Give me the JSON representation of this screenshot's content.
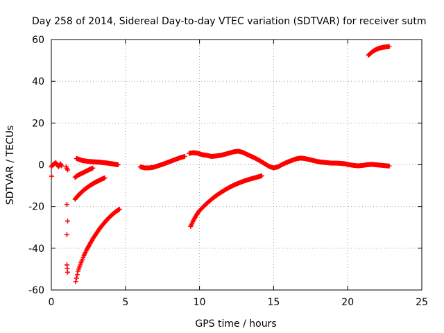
{
  "chart_data": {
    "type": "scatter",
    "title": "Day 258 of 2014, Sidereal Day-to-day VTEC variation (SDTVAR) for receiver sutm",
    "xlabel": "GPS time / hours",
    "ylabel": "SDTVAR / TECUs",
    "xlim": [
      0,
      25
    ],
    "ylim": [
      -60,
      60
    ],
    "xticks": [
      0,
      5,
      10,
      15,
      20,
      25
    ],
    "xtick_labels": [
      "0",
      "5",
      "10",
      "15",
      "20",
      "25"
    ],
    "yticks": [
      -60,
      -40,
      -20,
      0,
      20,
      40,
      60
    ],
    "ytick_labels": [
      "-60",
      "-40",
      "-20",
      "0",
      "20",
      "40",
      "60"
    ],
    "grid": true,
    "marker": "+",
    "color": "#ff0000",
    "series": [
      {
        "name": "cluster-start-near-zero",
        "x": [
          0.0,
          0.1,
          0.2,
          0.3,
          0.4,
          0.5,
          0.6,
          0.7
        ],
        "y": [
          -1,
          0,
          0.5,
          1,
          0,
          -1,
          0.5,
          -0.5
        ]
      },
      {
        "name": "isolated-start",
        "x": [
          0.02
        ],
        "y": [
          -5.5
        ]
      },
      {
        "name": "isolated-mid",
        "x": [
          1.05,
          1.05,
          1.1,
          1.1,
          1.0
        ],
        "y": [
          -19,
          -48,
          -51.5,
          -2.5,
          -1
        ]
      },
      {
        "name": "zero-band-early",
        "x": [
          1.7,
          1.9,
          2.1,
          2.3,
          2.5,
          2.7,
          2.9,
          3.1,
          3.3,
          3.5,
          3.7,
          3.9,
          4.1,
          4.3,
          4.5
        ],
        "y": [
          3,
          2.5,
          2,
          1.8,
          1.6,
          1.5,
          1.4,
          1.3,
          1.2,
          1.0,
          0.9,
          0.7,
          0.5,
          0.2,
          0.0
        ]
      },
      {
        "name": "arc-minus-5",
        "x": [
          1.6,
          1.8,
          2.0,
          2.2,
          2.4,
          2.6,
          2.8
        ],
        "y": [
          -6,
          -5,
          -4.3,
          -3.6,
          -2.9,
          -2.2,
          -1.6
        ]
      },
      {
        "name": "arc-minus-16",
        "x": [
          1.6,
          1.8,
          2.0,
          2.2,
          2.4,
          2.6,
          2.8,
          3.0,
          3.2,
          3.4,
          3.6
        ],
        "y": [
          -16.5,
          -14.8,
          -13.4,
          -12.1,
          -11.0,
          -10.0,
          -9.1,
          -8.3,
          -7.6,
          -6.9,
          -6.3
        ]
      },
      {
        "name": "arc-minus-56",
        "x": [
          1.65,
          1.8,
          2.0,
          2.2,
          2.4,
          2.6,
          2.8,
          3.0,
          3.2,
          3.4,
          3.6,
          3.8,
          4.0,
          4.2,
          4.4,
          4.6
        ],
        "y": [
          -56,
          -51,
          -47,
          -43.5,
          -40.5,
          -38,
          -35.5,
          -33.3,
          -31.2,
          -29.3,
          -27.6,
          -26,
          -24.6,
          -23.3,
          -22.2,
          -21.3
        ]
      },
      {
        "name": "zero-band-6to9",
        "x": [
          6.0,
          6.3,
          6.6,
          6.9,
          7.2,
          7.5,
          7.8,
          8.1,
          8.4,
          8.7,
          9.0
        ],
        "y": [
          -1,
          -1.5,
          -1.5,
          -1.2,
          -0.5,
          0.2,
          1,
          1.8,
          2.6,
          3.4,
          4.0
        ]
      },
      {
        "name": "arc-minus-29",
        "x": [
          9.4,
          9.6,
          9.8,
          10.0,
          10.3,
          10.6,
          10.9,
          11.2,
          11.5,
          11.8,
          12.1,
          12.4,
          12.7,
          13.0,
          13.3,
          13.6,
          13.9,
          14.2
        ],
        "y": [
          -29.5,
          -26.5,
          -24,
          -22,
          -19.8,
          -17.8,
          -16,
          -14.4,
          -13,
          -11.7,
          -10.5,
          -9.5,
          -8.6,
          -7.8,
          -7.1,
          -6.5,
          -5.9,
          -5.3
        ]
      },
      {
        "name": "main-band",
        "x": [
          9.3,
          9.6,
          9.9,
          10.2,
          10.5,
          10.8,
          11.1,
          11.4,
          11.7,
          12.0,
          12.3,
          12.6,
          12.9,
          13.2,
          13.5,
          13.8,
          14.1,
          14.4,
          14.7,
          15.0,
          15.3,
          15.6,
          15.9,
          16.2,
          16.5,
          16.8,
          17.1,
          17.4,
          17.7,
          18.0,
          18.3,
          18.6,
          18.9,
          19.2,
          19.5,
          19.8,
          20.1,
          20.4,
          20.7,
          21.0,
          21.3,
          21.6,
          21.9,
          22.2,
          22.5,
          22.8
        ],
        "y": [
          5.5,
          5.8,
          5.5,
          4.8,
          4.5,
          4.0,
          4.2,
          4.5,
          5.0,
          5.6,
          6.2,
          6.5,
          6.0,
          5.0,
          4.0,
          3.0,
          1.8,
          0.5,
          -0.8,
          -1.5,
          -1.0,
          0.2,
          1.2,
          2.0,
          2.8,
          3.2,
          3.0,
          2.5,
          2.0,
          1.5,
          1.2,
          1.0,
          0.8,
          0.8,
          0.7,
          0.5,
          0.0,
          -0.3,
          -0.5,
          -0.3,
          0.0,
          0.2,
          0.0,
          -0.2,
          -0.4,
          -0.6
        ]
      },
      {
        "name": "arc-plus-55",
        "x": [
          21.4,
          21.6,
          21.8,
          22.0,
          22.2,
          22.4,
          22.6,
          22.8
        ],
        "y": [
          52.5,
          53.8,
          54.8,
          55.5,
          56.0,
          56.3,
          56.5,
          56.6
        ]
      }
    ]
  }
}
